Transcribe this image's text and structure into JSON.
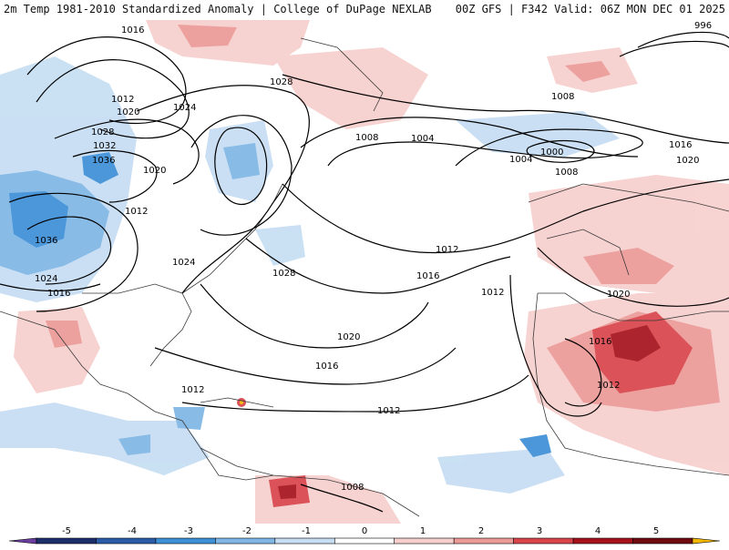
{
  "header": {
    "left_title": "2m Temp 1981-2010 Standardized Anomaly | College of DuPage NEXLAB",
    "right_title": "00Z GFS | F342 Valid: 06Z MON DEC 01 2025"
  },
  "isobars": [
    {
      "label": "1016"
    },
    {
      "label": "1012"
    },
    {
      "label": "1020"
    },
    {
      "label": "1024"
    },
    {
      "label": "1028"
    },
    {
      "label": "1032"
    },
    {
      "label": "1036"
    },
    {
      "label": "1020"
    },
    {
      "label": "1012"
    },
    {
      "label": "1036"
    },
    {
      "label": "1024"
    },
    {
      "label": "1016"
    },
    {
      "label": "1024"
    },
    {
      "label": "1028"
    },
    {
      "label": "1020"
    },
    {
      "label": "1016"
    },
    {
      "label": "1012"
    },
    {
      "label": "1012"
    },
    {
      "label": "1028"
    },
    {
      "label": "1008"
    },
    {
      "label": "1004"
    },
    {
      "label": "1004"
    },
    {
      "label": "1000"
    },
    {
      "label": "1008"
    },
    {
      "label": "1008"
    },
    {
      "label": "1012"
    },
    {
      "label": "1016"
    },
    {
      "label": "1012"
    },
    {
      "label": "1020"
    },
    {
      "label": "1016"
    },
    {
      "label": "1012"
    },
    {
      "label": "1016"
    },
    {
      "label": "1020"
    },
    {
      "label": "1008"
    },
    {
      "label": "996"
    }
  ],
  "colorbar": {
    "ticks": [
      "-5",
      "-4",
      "-3",
      "-2",
      "-1",
      "0",
      "1",
      "2",
      "3",
      "4",
      "5"
    ],
    "colors": {
      "min_arrow": "#6a3fa0",
      "c_m5": "#1c2f6b",
      "c_m4": "#2b5ca8",
      "c_m3": "#3d8fd6",
      "c_m2": "#7fb6e6",
      "c_m1": "#c6ddf2",
      "c_0": "#ffffff",
      "c_p1": "#f6cfcd",
      "c_p2": "#ec9a97",
      "c_p3": "#d8444a",
      "c_p4": "#a5121c",
      "c_p5": "#6e0a10",
      "max_arrow": "#f5b800"
    }
  },
  "colors": {
    "warm_light": "#f6cfcd",
    "warm_mid": "#ec9a97",
    "warm_strong": "#d8444a",
    "warm_deep": "#a5121c",
    "cool_light": "#c6ddf2",
    "cool_mid": "#7fb6e6",
    "cool_strong": "#3d8fd6",
    "cool_deep": "#2b5ca8",
    "coast": "#3a3a3a",
    "isobar": "#000000"
  }
}
